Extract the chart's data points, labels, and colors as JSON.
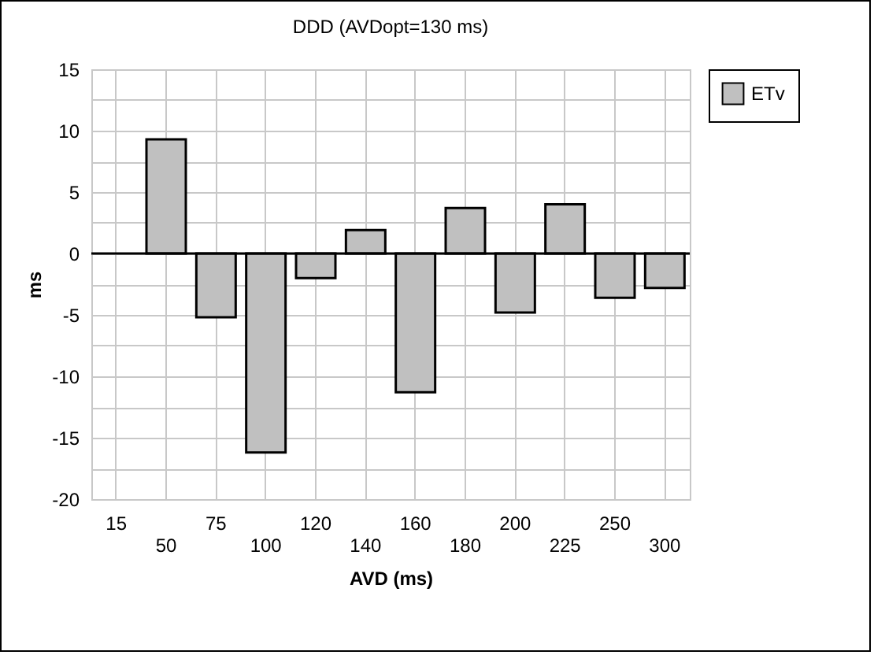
{
  "chart_data": {
    "type": "bar",
    "title": "DDD  (AVDopt=130 ms)",
    "xlabel": "AVD (ms)",
    "ylabel": "ms",
    "categories": [
      "15",
      "50",
      "75",
      "100",
      "120",
      "140",
      "160",
      "180",
      "200",
      "225",
      "250",
      "300"
    ],
    "series": [
      {
        "name": "ETv",
        "color": "#c0c0c0",
        "values": [
          null,
          9.3,
          -5.2,
          -16.2,
          -2.0,
          1.9,
          -11.3,
          3.7,
          -4.8,
          4.0,
          -3.6,
          -2.8
        ]
      }
    ],
    "ylim": [
      -20,
      15
    ],
    "yticks": [
      -20,
      {
        "value": -17.5,
        "label": null
      },
      -15,
      {
        "value": -12.5,
        "label": null
      },
      -10,
      {
        "value": -7.5,
        "label": null
      },
      -5,
      {
        "value": -2.5,
        "label": null
      },
      0,
      {
        "value": 2.5,
        "label": null
      },
      5,
      {
        "value": 7.5,
        "label": null
      },
      10,
      {
        "value": 12.5,
        "label": null
      },
      15
    ],
    "ref_lines": [
      {
        "axis": "y",
        "value": 0,
        "color": "#000000"
      }
    ],
    "grid": true,
    "legend": "right"
  }
}
